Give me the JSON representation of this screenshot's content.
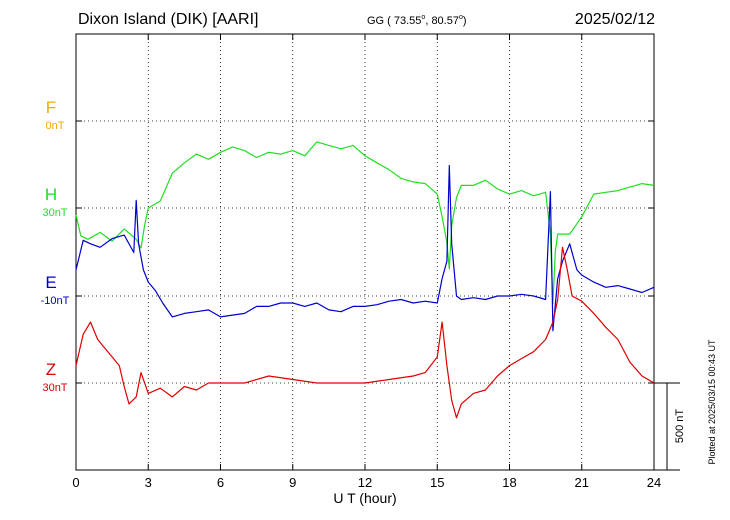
{
  "header": {
    "station": "Dixon Island (DIK)  [AARI]",
    "coords_prefix": "GG ( 73.55",
    "coords_mid": ",  80.57",
    "coords_suffix": ")",
    "date": "2025/02/12"
  },
  "footer": {
    "plotted_note": "Plotted at 2025/03/15 00:43 UT",
    "scale_label": "500 nT"
  },
  "chart_data": {
    "type": "line",
    "xlabel": "U T (hour)",
    "xlim": [
      0,
      24
    ],
    "x_ticks": [
      0,
      3,
      6,
      9,
      12,
      15,
      18,
      21,
      24
    ],
    "grid": true,
    "scale_bar_nT": 500,
    "components": [
      {
        "name": "F",
        "baseline_label": "0nT",
        "color": "#f2a900"
      },
      {
        "name": "H",
        "baseline_label": "30nT",
        "color": "#22dd22"
      },
      {
        "name": "E",
        "baseline_label": "-10nT",
        "color": "#0000cc"
      },
      {
        "name": "Z",
        "baseline_label": "30nT",
        "color": "#dd0000"
      }
    ],
    "series": [
      {
        "name": "H",
        "x": [
          0,
          0.2,
          0.5,
          1,
          1.5,
          2,
          2.5,
          2.7,
          2.85,
          3,
          3.5,
          4,
          4.5,
          5,
          5.5,
          6,
          6.5,
          7,
          7.5,
          8,
          8.5,
          9,
          9.5,
          10,
          10.5,
          11,
          11.5,
          12,
          12.5,
          13,
          13.5,
          14,
          14.5,
          15,
          15.2,
          15.4,
          15.5,
          15.6,
          15.8,
          16,
          16.5,
          17,
          17.5,
          18,
          18.5,
          19,
          19.5,
          19.7,
          19.8,
          19.9,
          20,
          20.5,
          21,
          21.5,
          22,
          22.5,
          23,
          23.5,
          24
        ],
        "y": [
          -40,
          -160,
          -180,
          -140,
          -190,
          -120,
          -180,
          -230,
          -100,
          0,
          40,
          200,
          260,
          310,
          280,
          320,
          350,
          330,
          290,
          320,
          310,
          330,
          300,
          380,
          360,
          340,
          360,
          300,
          260,
          220,
          170,
          150,
          140,
          80,
          -50,
          -200,
          -350,
          -100,
          60,
          130,
          130,
          160,
          110,
          80,
          100,
          70,
          90,
          -150,
          -550,
          -250,
          -150,
          -150,
          -50,
          80,
          90,
          100,
          120,
          140,
          130
        ]
      },
      {
        "name": "E",
        "x": [
          0,
          0.3,
          0.6,
          1,
          1.5,
          2,
          2.4,
          2.5,
          2.6,
          2.8,
          3,
          3.3,
          3.6,
          4,
          4.5,
          5,
          5.5,
          6,
          6.5,
          7,
          7.5,
          8,
          8.5,
          9,
          9.5,
          10,
          10.5,
          11,
          11.5,
          12,
          12.5,
          13,
          13.5,
          14,
          14.5,
          15,
          15.2,
          15.4,
          15.5,
          15.6,
          15.8,
          16,
          16.5,
          17,
          17.5,
          18,
          18.5,
          19,
          19.5,
          19.7,
          19.8,
          20,
          20.2,
          20.5,
          20.8,
          21,
          21.5,
          22,
          22.5,
          23,
          23.5,
          24
        ],
        "y": [
          150,
          320,
          300,
          280,
          330,
          350,
          250,
          550,
          300,
          150,
          80,
          30,
          -40,
          -120,
          -100,
          -90,
          -80,
          -120,
          -110,
          -100,
          -60,
          -60,
          -40,
          -40,
          -60,
          -40,
          -80,
          -90,
          -60,
          -60,
          -50,
          -30,
          -20,
          -40,
          -30,
          -40,
          100,
          200,
          750,
          300,
          0,
          -20,
          -10,
          -20,
          0,
          0,
          10,
          0,
          -20,
          600,
          -200,
          100,
          200,
          300,
          150,
          120,
          80,
          50,
          60,
          40,
          20,
          50
        ]
      },
      {
        "name": "Z",
        "x": [
          0,
          0.3,
          0.6,
          0.9,
          1.2,
          1.5,
          1.8,
          2,
          2.2,
          2.5,
          2.7,
          3,
          3.5,
          4,
          4.5,
          5,
          5.5,
          6,
          7,
          8,
          9,
          10,
          11,
          12,
          13,
          14,
          14.5,
          15,
          15.2,
          15.4,
          15.6,
          15.8,
          16,
          16.5,
          17,
          17.5,
          18,
          18.5,
          19,
          19.5,
          19.8,
          20,
          20.2,
          20.4,
          20.6,
          21,
          21.5,
          22,
          22.5,
          23,
          23.5,
          24
        ],
        "y": [
          100,
          280,
          350,
          250,
          200,
          150,
          100,
          -20,
          -120,
          -80,
          60,
          -60,
          -30,
          -80,
          -20,
          -40,
          0,
          0,
          0,
          40,
          20,
          0,
          0,
          0,
          20,
          40,
          60,
          150,
          350,
          100,
          -100,
          -200,
          -120,
          -60,
          -40,
          40,
          100,
          140,
          180,
          250,
          350,
          480,
          780,
          650,
          500,
          470,
          400,
          320,
          250,
          120,
          40,
          0
        ]
      }
    ]
  }
}
